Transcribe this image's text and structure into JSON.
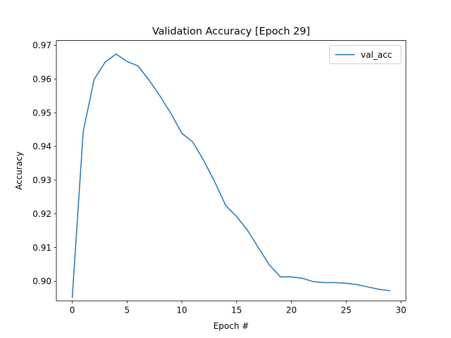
{
  "chart_data": {
    "type": "line",
    "title": "Validation Accuracy [Epoch 29]",
    "xlabel": "Epoch #",
    "ylabel": "Accuracy",
    "xlim": [
      -1.45,
      30.45
    ],
    "ylim": [
      0.8942,
      0.9714
    ],
    "xticks": [
      0,
      5,
      10,
      15,
      20,
      25,
      30
    ],
    "xtick_labels": [
      "0",
      "5",
      "10",
      "15",
      "20",
      "25",
      "30"
    ],
    "yticks": [
      0.9,
      0.91,
      0.92,
      0.93,
      0.94,
      0.95,
      0.96,
      0.97
    ],
    "ytick_labels": [
      "0.90",
      "0.91",
      "0.92",
      "0.93",
      "0.94",
      "0.95",
      "0.96",
      "0.97"
    ],
    "grid": false,
    "legend_position": "top-right",
    "series": [
      {
        "name": "val_acc",
        "color": "#1f77b4",
        "x": [
          0,
          1,
          2,
          3,
          4,
          5,
          6,
          7,
          8,
          9,
          10,
          11,
          12,
          13,
          14,
          15,
          16,
          17,
          18,
          19,
          20,
          21,
          22,
          23,
          24,
          25,
          26,
          27,
          28,
          29
        ],
        "y": [
          0.8952,
          0.9444,
          0.9599,
          0.965,
          0.9674,
          0.9652,
          0.9639,
          0.9597,
          0.955,
          0.9498,
          0.9439,
          0.9413,
          0.9358,
          0.9295,
          0.9225,
          0.9192,
          0.9151,
          0.9099,
          0.9048,
          0.9013,
          0.9013,
          0.9009,
          0.8999,
          0.8996,
          0.8996,
          0.8994,
          0.899,
          0.8983,
          0.8976,
          0.8972
        ]
      }
    ]
  }
}
